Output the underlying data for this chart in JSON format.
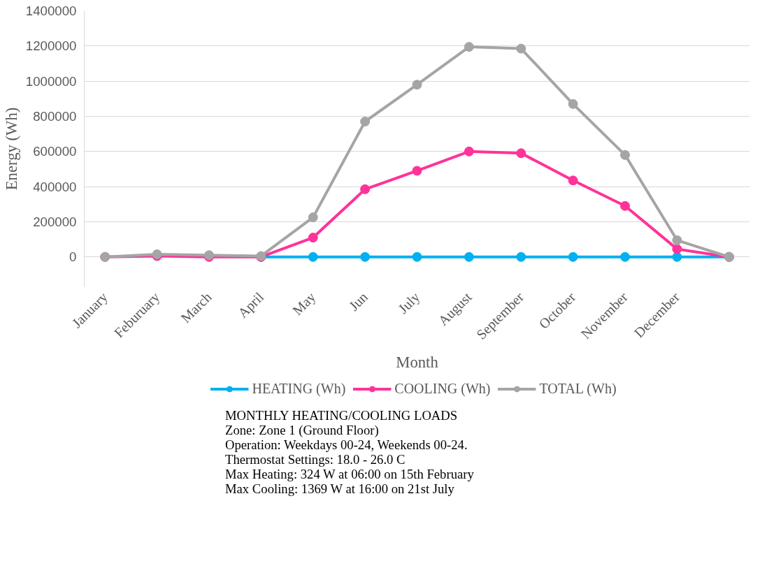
{
  "chart_data": {
    "type": "line",
    "xlabel": "Month",
    "ylabel": "Energy (Wh)",
    "categories": [
      "January",
      "Feburuary",
      "March",
      "April",
      "May",
      "Jun",
      "July",
      "August",
      "September",
      "October",
      "November",
      "December",
      null
    ],
    "series": [
      {
        "name": "HEATING (Wh)",
        "color": "#00b0f0",
        "values": [
          null,
          null,
          null,
          0,
          0,
          0,
          0,
          0,
          0,
          0,
          0,
          0,
          0
        ]
      },
      {
        "name": "COOLING (Wh)",
        "color": "#ff3399",
        "values": [
          0,
          5000,
          0,
          0,
          110000,
          385000,
          490000,
          600000,
          590000,
          435000,
          290000,
          45000,
          0
        ]
      },
      {
        "name": "TOTAL (Wh)",
        "color": "#a5a5a5",
        "values": [
          0,
          15000,
          10000,
          5000,
          225000,
          770000,
          980000,
          1195000,
          1185000,
          870000,
          580000,
          95000,
          0
        ]
      }
    ],
    "ylim": [
      -170000,
      1400000
    ],
    "yticks": [
      0,
      200000,
      400000,
      600000,
      800000,
      1000000,
      1200000,
      1400000
    ],
    "grid": "y",
    "legend": "bottom",
    "marker": "circle",
    "line_style": "solid",
    "annotations": [
      "MONTHLY HEATING/COOLING LOADS",
      "Zone: Zone 1 (Ground Floor)",
      "Operation: Weekdays 00-24, Weekends 00-24.",
      "Thermostat Settings: 18.0 - 26.0 C",
      "Max Heating: 324 W at 06:00 on 15th February",
      "Max Cooling: 1369 W at 16:00 on 21st July"
    ]
  }
}
